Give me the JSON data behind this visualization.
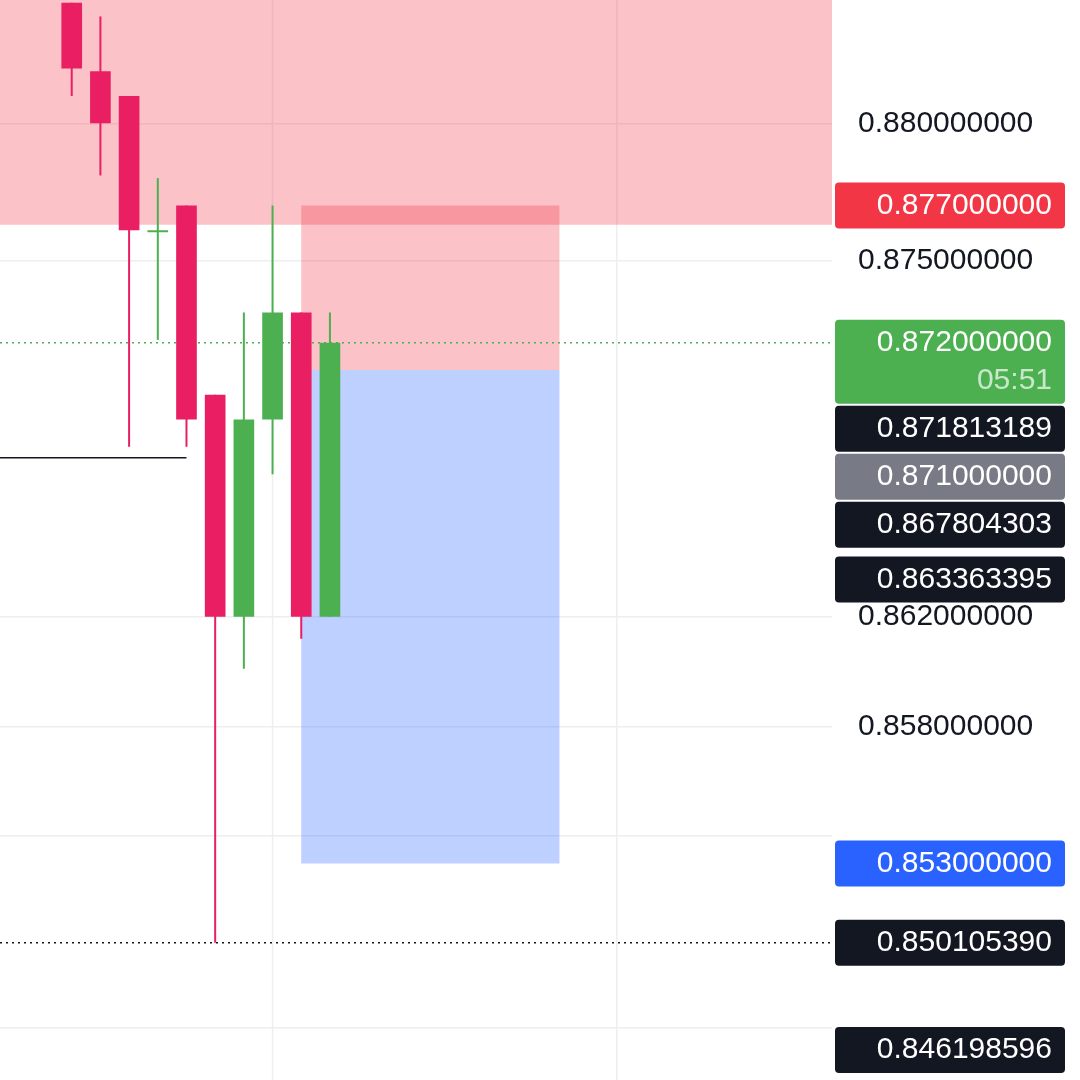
{
  "chart_data": {
    "type": "candlestick",
    "categories": [
      null,
      null,
      null,
      null,
      null,
      null,
      null,
      null,
      null,
      null,
      null,
      null,
      null,
      null,
      null,
      null,
      null,
      null,
      null,
      null,
      null,
      null,
      null,
      null,
      null,
      null,
      null,
      null,
      null
    ],
    "ohlc": [
      null,
      null,
      [
        0.8844,
        0.8844,
        0.881,
        0.882
      ],
      [
        0.8819,
        0.8839,
        0.8781,
        0.88
      ],
      [
        0.881,
        0.881,
        0.8682,
        0.8761
      ],
      [
        0.8761,
        0.878,
        0.8721,
        0.8761
      ],
      [
        0.877,
        0.877,
        0.8682,
        0.8692
      ],
      [
        0.8701,
        0.8701,
        0.85010539,
        0.862
      ],
      [
        0.862,
        0.8731,
        0.8601,
        0.8692
      ],
      [
        0.8692,
        0.877,
        0.8672,
        0.8731
      ],
      [
        0.8731,
        0.8731,
        0.8612,
        0.862
      ],
      [
        0.862,
        0.8731,
        0.862,
        0.872
      ],
      null,
      null,
      null,
      null,
      null,
      null,
      null,
      null,
      null,
      null,
      null,
      null,
      null,
      null,
      null,
      null,
      null
    ],
    "colors": [
      null,
      null,
      "#e91e63",
      "#e91e63",
      "#e91e63",
      "#4caf50",
      "#e91e63",
      "#e91e63",
      "#4caf50",
      "#4caf50",
      "#e91e63",
      "#4caf50",
      null,
      null,
      null,
      null,
      null,
      null,
      null,
      null,
      null,
      null,
      null,
      null,
      null,
      null,
      null,
      null,
      null
    ],
    "ylim": [
      0.8451,
      0.8845
    ],
    "yticks": [
      {
        "value": 0.88,
        "label": "0.880000000"
      },
      {
        "value": 0.875,
        "label": "0.875000000"
      },
      {
        "value": 0.862,
        "label": "0.862000000"
      },
      {
        "value": 0.858,
        "label": "0.858000000"
      },
      {
        "value": 0.854,
        "label": null
      },
      {
        "value": 0.847,
        "label": null
      }
    ],
    "grid": true,
    "tick_labels": "y",
    "bands": [
      {
        "axis": "y",
        "from": 0.8763,
        "to": 0.8845,
        "color": "#f23645"
      },
      {
        "axis": "y",
        "from": 0.871,
        "to": 0.877,
        "color": "#f23645"
      },
      {
        "axis": "y",
        "from": 0.853,
        "to": 0.871,
        "color": "#2962ff"
      }
    ],
    "ref_lines": [
      {
        "axis": "y",
        "value": 0.872,
        "label": "0.872000000\n05:51",
        "color": "#4caf50",
        "line_style": "dotted"
      },
      {
        "axis": "y",
        "value": 0.867804303,
        "color": "#131722",
        "line_style": "solid"
      },
      {
        "axis": "y",
        "value": 0.85010539,
        "label": "0.850105390",
        "color": "#131722",
        "line_style": "dotted"
      }
    ],
    "annotations": [
      "0.877000000",
      "0.871813189",
      "0.871000000",
      "0.867804303",
      "0.863363395",
      "0.853000000",
      "0.846198596"
    ]
  }
}
